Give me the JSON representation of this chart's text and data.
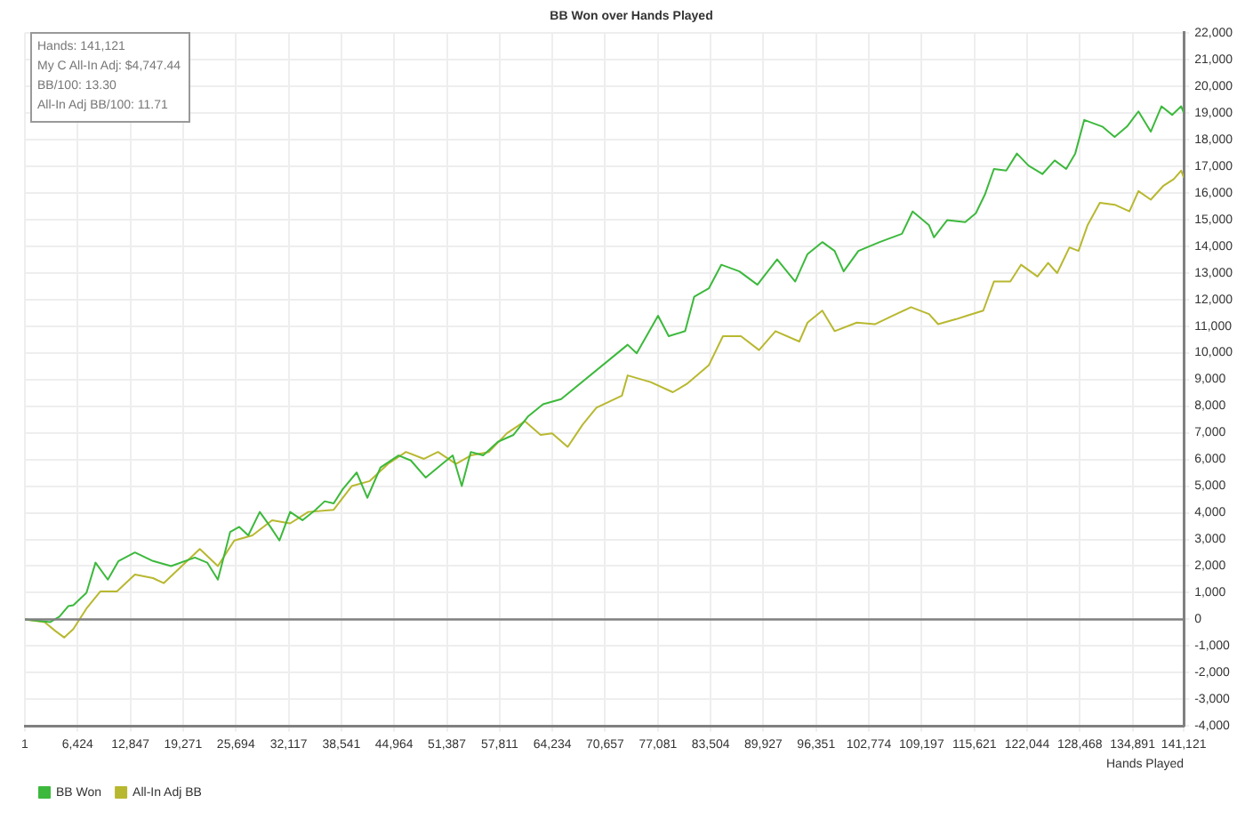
{
  "chart_data": {
    "type": "line",
    "title": "BB Won over Hands Played",
    "xlabel": "Hands Played",
    "annotations": [
      "Hands: 141,121",
      "My C All-In Adj: $4,747.44",
      "BB/100: 13.30",
      "All-In Adj BB/100: 11.71"
    ],
    "series": [
      {
        "name": "BB Won",
        "color": "#3cb93c",
        "x": [
          1,
          3100,
          4200,
          5300,
          5900,
          7500,
          8600,
          10100,
          11400,
          13400,
          15600,
          17800,
          20700,
          22200,
          23500,
          25000,
          26100,
          27200,
          28600,
          29900,
          31000,
          32300,
          33800,
          35400,
          36500,
          37600,
          38700,
          40400,
          41700,
          43300,
          45500,
          47000,
          48800,
          50800,
          52100,
          53200,
          54300,
          55800,
          57600,
          59500,
          61300,
          63100,
          65300,
          73400,
          74500,
          77100,
          78400,
          80400,
          81500,
          83300,
          84800,
          87000,
          89200,
          91600,
          93800,
          95300,
          97100,
          98600,
          99700,
          101500,
          104100,
          106800,
          108100,
          110100,
          110700,
          112300,
          114500,
          115800,
          116900,
          118000,
          119500,
          120800,
          122200,
          123900,
          125400,
          126800,
          127900,
          129000,
          131200,
          132700,
          134200,
          135600,
          137100,
          138400,
          139700,
          140800,
          141121
        ],
        "values": [
          0,
          -100,
          100,
          500,
          530,
          1000,
          2130,
          1490,
          2190,
          2510,
          2190,
          2000,
          2320,
          2130,
          1490,
          3280,
          3470,
          3150,
          4030,
          3470,
          2960,
          4030,
          3720,
          4110,
          4430,
          4350,
          4880,
          5510,
          4560,
          5700,
          6150,
          5960,
          5320,
          5830,
          6150,
          5000,
          6280,
          6150,
          6660,
          6920,
          7620,
          8070,
          8260,
          10300,
          9980,
          11390,
          10620,
          10810,
          12100,
          12420,
          13300,
          13050,
          12550,
          13500,
          12670,
          13700,
          14150,
          13820,
          13050,
          13820,
          14150,
          14460,
          15300,
          14780,
          14330,
          14970,
          14900,
          15230,
          15930,
          16890,
          16830,
          17470,
          17020,
          16700,
          17210,
          16890,
          17470,
          18730,
          18480,
          18090,
          18480,
          19050,
          18290,
          19240,
          18920,
          19240,
          19000
        ]
      },
      {
        "name": "All-In Adj BB",
        "color": "#b8b830",
        "x": [
          1,
          2400,
          3700,
          4800,
          5900,
          7500,
          9200,
          11200,
          13400,
          15600,
          16900,
          19100,
          21300,
          23500,
          25500,
          27700,
          30100,
          32300,
          34500,
          37600,
          39800,
          42000,
          44200,
          46400,
          48600,
          50300,
          52500,
          54300,
          56500,
          58700,
          60900,
          62800,
          64200,
          66100,
          67900,
          69600,
          72700,
          73400,
          76200,
          78900,
          80600,
          83300,
          85000,
          87200,
          89400,
          91400,
          94300,
          95300,
          97100,
          98600,
          101300,
          103500,
          105700,
          107900,
          110100,
          111200,
          113400,
          114700,
          116700,
          118000,
          120000,
          121300,
          123300,
          124600,
          125700,
          127200,
          128300,
          129400,
          130900,
          132700,
          134500,
          135600,
          137100,
          138600,
          139900,
          140800,
          141121
        ],
        "values": [
          0,
          -100,
          -430,
          -680,
          -360,
          410,
          1050,
          1050,
          1680,
          1550,
          1360,
          2000,
          2640,
          2000,
          2960,
          3150,
          3720,
          3600,
          4030,
          4110,
          5000,
          5190,
          5830,
          6280,
          6020,
          6280,
          5830,
          6150,
          6280,
          6980,
          7430,
          6920,
          6980,
          6470,
          7300,
          7940,
          8390,
          9150,
          8900,
          8520,
          8830,
          9540,
          10620,
          10620,
          10100,
          10810,
          10420,
          11130,
          11580,
          10810,
          11130,
          11070,
          11390,
          11710,
          11450,
          11070,
          11260,
          11390,
          11580,
          12670,
          12670,
          13300,
          12860,
          13370,
          12990,
          13950,
          13820,
          14780,
          15620,
          15550,
          15300,
          16060,
          15740,
          16250,
          16510,
          16830,
          16570
        ]
      }
    ],
    "xlim": [
      1,
      141121
    ],
    "xticks": [
      1,
      {
        "value": 6424,
        "label": "6,424"
      },
      {
        "value": 12847,
        "label": "12,847"
      },
      {
        "value": 19271,
        "label": "19,271"
      },
      {
        "value": 25694,
        "label": "25,694"
      },
      {
        "value": 32117,
        "label": "32,117"
      },
      {
        "value": 38541,
        "label": "38,541"
      },
      {
        "value": 44964,
        "label": "44,964"
      },
      {
        "value": 51387,
        "label": "51,387"
      },
      {
        "value": 57811,
        "label": "57,811"
      },
      {
        "value": 64234,
        "label": "64,234"
      },
      {
        "value": 70657,
        "label": "70,657"
      },
      {
        "value": 77081,
        "label": "77,081"
      },
      {
        "value": 83504,
        "label": "83,504"
      },
      {
        "value": 89927,
        "label": "89,927"
      },
      {
        "value": 96351,
        "label": "96,351"
      },
      {
        "value": 102774,
        "label": "102,774"
      },
      {
        "value": 109197,
        "label": "109,197"
      },
      {
        "value": 115621,
        "label": "115,621"
      },
      {
        "value": 122044,
        "label": "122,044"
      },
      {
        "value": 128468,
        "label": "128,468"
      },
      {
        "value": 134891,
        "label": "134,891"
      },
      {
        "value": 141121,
        "label": "141,121"
      }
    ],
    "ylim": [
      -4000,
      22000
    ],
    "yticks": [
      {
        "value": -4000,
        "label": "-4,000"
      },
      {
        "value": -3000,
        "label": "-3,000"
      },
      {
        "value": -2000,
        "label": "-2,000"
      },
      {
        "value": -1000,
        "label": "-1,000"
      },
      0,
      {
        "value": 1000,
        "label": "1,000"
      },
      {
        "value": 2000,
        "label": "2,000"
      },
      {
        "value": 3000,
        "label": "3,000"
      },
      {
        "value": 4000,
        "label": "4,000"
      },
      {
        "value": 5000,
        "label": "5,000"
      },
      {
        "value": 6000,
        "label": "6,000"
      },
      {
        "value": 7000,
        "label": "7,000"
      },
      {
        "value": 8000,
        "label": "8,000"
      },
      {
        "value": 9000,
        "label": "9,000"
      },
      {
        "value": 10000,
        "label": "10,000"
      },
      {
        "value": 11000,
        "label": "11,000"
      },
      {
        "value": 12000,
        "label": "12,000"
      },
      {
        "value": 13000,
        "label": "13,000"
      },
      {
        "value": 14000,
        "label": "14,000"
      },
      {
        "value": 15000,
        "label": "15,000"
      },
      {
        "value": 16000,
        "label": "16,000"
      },
      {
        "value": 17000,
        "label": "17,000"
      },
      {
        "value": 18000,
        "label": "18,000"
      },
      {
        "value": 19000,
        "label": "19,000"
      },
      {
        "value": 20000,
        "label": "20,000"
      },
      {
        "value": 21000,
        "label": "21,000"
      },
      {
        "value": 22000,
        "label": "22,000"
      }
    ],
    "ref_lines": [
      {
        "axis": "y",
        "value": 0,
        "color": "#808080"
      }
    ],
    "grid": true,
    "legend": "bottom left",
    "marker": "none",
    "line_style": "solid"
  }
}
